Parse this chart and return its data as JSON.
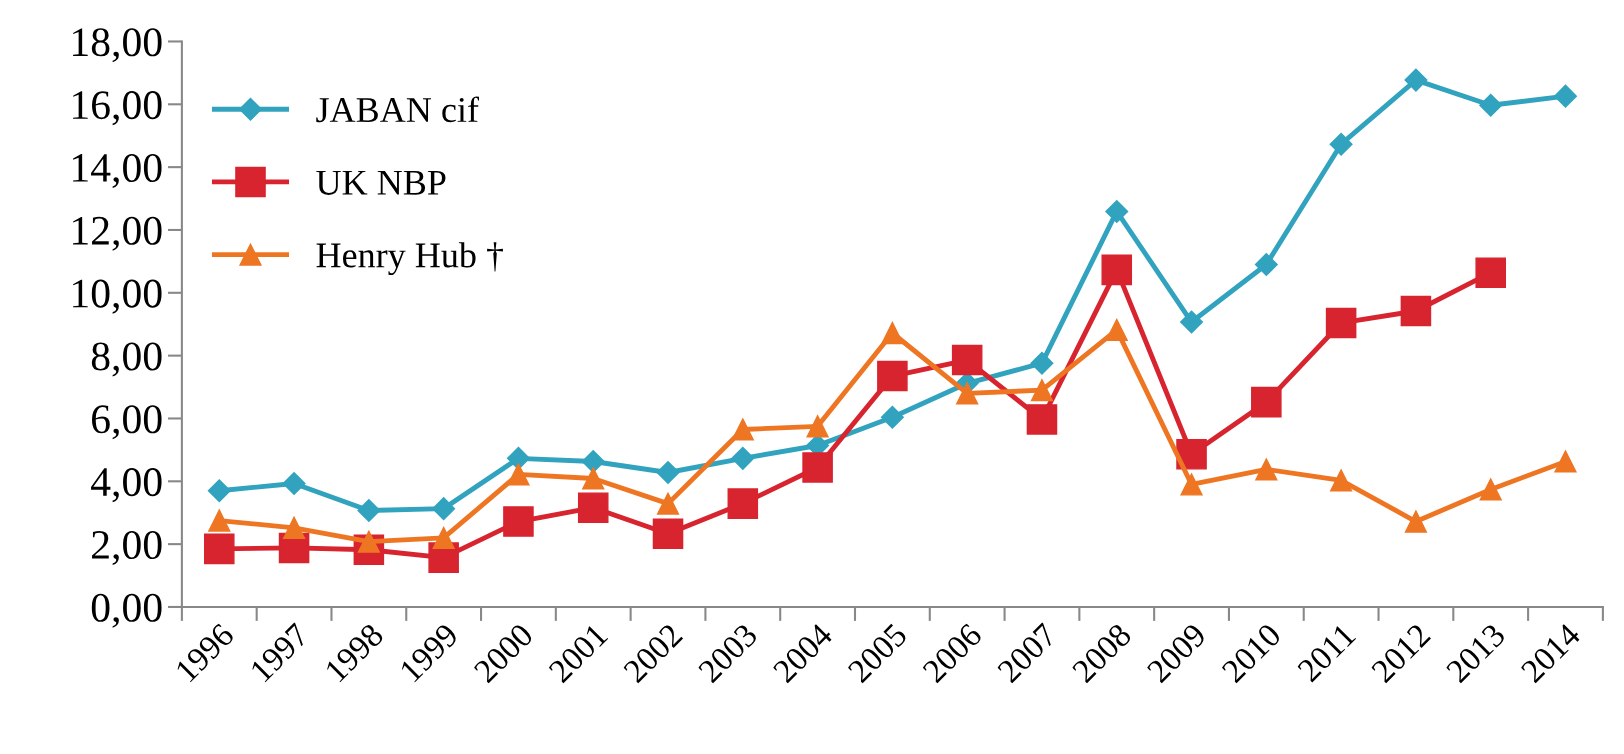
{
  "chart_data": {
    "type": "line",
    "categories": [
      "1996",
      "1997",
      "1998",
      "1999",
      "2000",
      "2001",
      "2002",
      "2003",
      "2004",
      "2005",
      "2006",
      "2007",
      "2008",
      "2009",
      "2010",
      "2011",
      "2012",
      "2013",
      "2014"
    ],
    "series": [
      {
        "name": "JABAN cif",
        "color": "#31a3bf",
        "marker": "diamond",
        "values": [
          3.7,
          3.93,
          3.07,
          3.13,
          4.73,
          4.63,
          4.28,
          4.73,
          5.14,
          6.04,
          7.12,
          7.76,
          12.59,
          9.07,
          10.9,
          14.73,
          16.77,
          15.97,
          16.26
        ]
      },
      {
        "name": "UK NBP",
        "color": "#d7242f",
        "marker": "square",
        "values": [
          1.85,
          1.88,
          1.82,
          1.57,
          2.72,
          3.16,
          2.33,
          3.29,
          4.44,
          7.35,
          7.86,
          5.97,
          10.73,
          4.86,
          6.52,
          9.04,
          9.42,
          10.64,
          null
        ]
      },
      {
        "name": "Henry Hub †",
        "color": "#ee7623",
        "marker": "triangle",
        "values": [
          2.75,
          2.52,
          2.08,
          2.2,
          4.22,
          4.09,
          3.29,
          5.65,
          5.75,
          8.72,
          6.8,
          6.9,
          8.82,
          3.9,
          4.38,
          4.03,
          2.72,
          3.74,
          4.63
        ]
      }
    ],
    "ylim": [
      0,
      18
    ],
    "yticks": [
      {
        "value": 0,
        "label": "0,00"
      },
      {
        "value": 2,
        "label": "2,00"
      },
      {
        "value": 4,
        "label": "4,00"
      },
      {
        "value": 6,
        "label": "6,00"
      },
      {
        "value": 8,
        "label": "8,00"
      },
      {
        "value": 10,
        "label": "10,00"
      },
      {
        "value": 12,
        "label": "12,00"
      },
      {
        "value": 14,
        "label": "14,00"
      },
      {
        "value": 16,
        "label": "16,00"
      },
      {
        "value": 18,
        "label": "18,00"
      }
    ],
    "grid": false,
    "legend": "top left",
    "line_style": "solid"
  }
}
